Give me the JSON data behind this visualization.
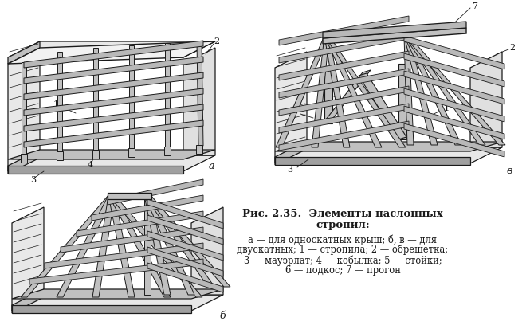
{
  "bg_color": "#ffffff",
  "title_bold": "Рис. 2.35.  Элементы наслонных",
  "title_bold2": "стропил:",
  "caption_line1": "а — для односкатных крыш; б, в — для",
  "caption_line2": "двускатных; 1 — стропила; 2 — обрешетка;",
  "caption_line3": "3 — мауэрлат; 4 — кобылка; 5 — стойки;",
  "caption_line4": "6 — подкос; 7 — прогон",
  "label_a": "а",
  "label_b": "б",
  "label_v": "в",
  "lc": "#1a1a1a",
  "fc_wall": "#d8d8d8",
  "fc_beam": "#c0c0c0",
  "fc_board": "#b8b8b8",
  "fc_light": "#e8e8e8",
  "fc_dark": "#a0a0a0",
  "figsize": [
    6.65,
    4.18
  ],
  "dpi": 100
}
